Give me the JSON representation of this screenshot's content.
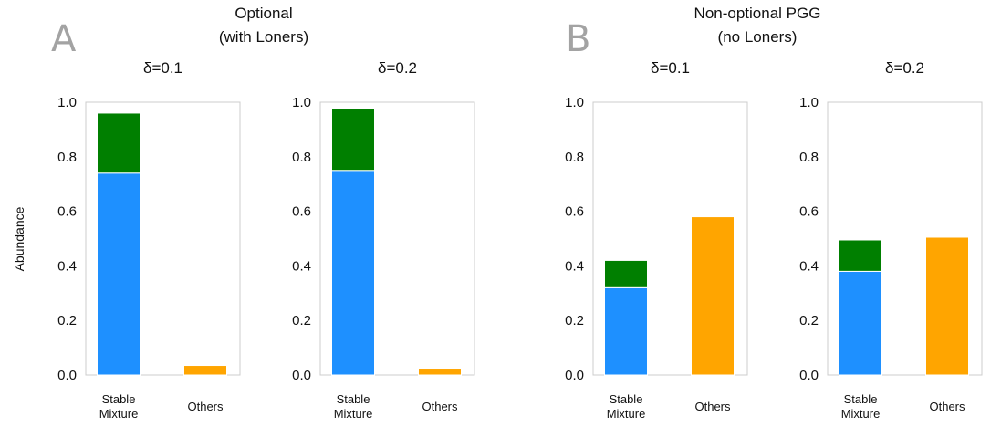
{
  "figure": {
    "panel_letters": [
      "A",
      "B"
    ],
    "group_titles": [
      [
        "Optional",
        "(with Loners)"
      ],
      [
        "Non-optional PGG",
        "(no Loners)"
      ]
    ],
    "ylabel": "Abundance"
  },
  "colors": {
    "blue": "#1e90ff",
    "green": "#007f00",
    "orange": "#ffa500",
    "frame": "#cccccc"
  },
  "chart_data": [
    {
      "type": "bar",
      "stacked": true,
      "group": "A",
      "title": "δ=0.1",
      "categories": [
        "Stable\nMixture",
        "Others"
      ],
      "series": [
        {
          "color": "#1e90ff",
          "values": [
            0.74,
            0.0
          ]
        },
        {
          "color": "#007f00",
          "values": [
            0.22,
            0.0
          ]
        },
        {
          "color": "#ffa500",
          "values": [
            0.0,
            0.035
          ]
        }
      ],
      "yticks": [
        "0.0",
        "0.2",
        "0.4",
        "0.6",
        "0.8",
        "1.0"
      ],
      "ylim": [
        0,
        1
      ],
      "ylabel": "Abundance",
      "grid": false
    },
    {
      "type": "bar",
      "stacked": true,
      "group": "A",
      "title": "δ=0.2",
      "categories": [
        "Stable\nMixture",
        "Others"
      ],
      "series": [
        {
          "color": "#1e90ff",
          "values": [
            0.75,
            0.0
          ]
        },
        {
          "color": "#007f00",
          "values": [
            0.225,
            0.0
          ]
        },
        {
          "color": "#ffa500",
          "values": [
            0.0,
            0.025
          ]
        }
      ],
      "yticks": [
        "0.0",
        "0.2",
        "0.4",
        "0.6",
        "0.8",
        "1.0"
      ],
      "ylim": [
        0,
        1
      ],
      "grid": false
    },
    {
      "type": "bar",
      "stacked": true,
      "group": "B",
      "title": "δ=0.1",
      "categories": [
        "Stable\nMixture",
        "Others"
      ],
      "series": [
        {
          "color": "#1e90ff",
          "values": [
            0.32,
            0.0
          ]
        },
        {
          "color": "#007f00",
          "values": [
            0.1,
            0.0
          ]
        },
        {
          "color": "#ffa500",
          "values": [
            0.0,
            0.58
          ]
        }
      ],
      "yticks": [
        "0.0",
        "0.2",
        "0.4",
        "0.6",
        "0.8",
        "1.0"
      ],
      "ylim": [
        0,
        1
      ],
      "grid": false
    },
    {
      "type": "bar",
      "stacked": true,
      "group": "B",
      "title": "δ=0.2",
      "categories": [
        "Stable\nMixture",
        "Others"
      ],
      "series": [
        {
          "color": "#1e90ff",
          "values": [
            0.38,
            0.0
          ]
        },
        {
          "color": "#007f00",
          "values": [
            0.115,
            0.0
          ]
        },
        {
          "color": "#ffa500",
          "values": [
            0.0,
            0.505
          ]
        }
      ],
      "yticks": [
        "0.0",
        "0.2",
        "0.4",
        "0.6",
        "0.8",
        "1.0"
      ],
      "ylim": [
        0,
        1
      ],
      "grid": false
    }
  ]
}
